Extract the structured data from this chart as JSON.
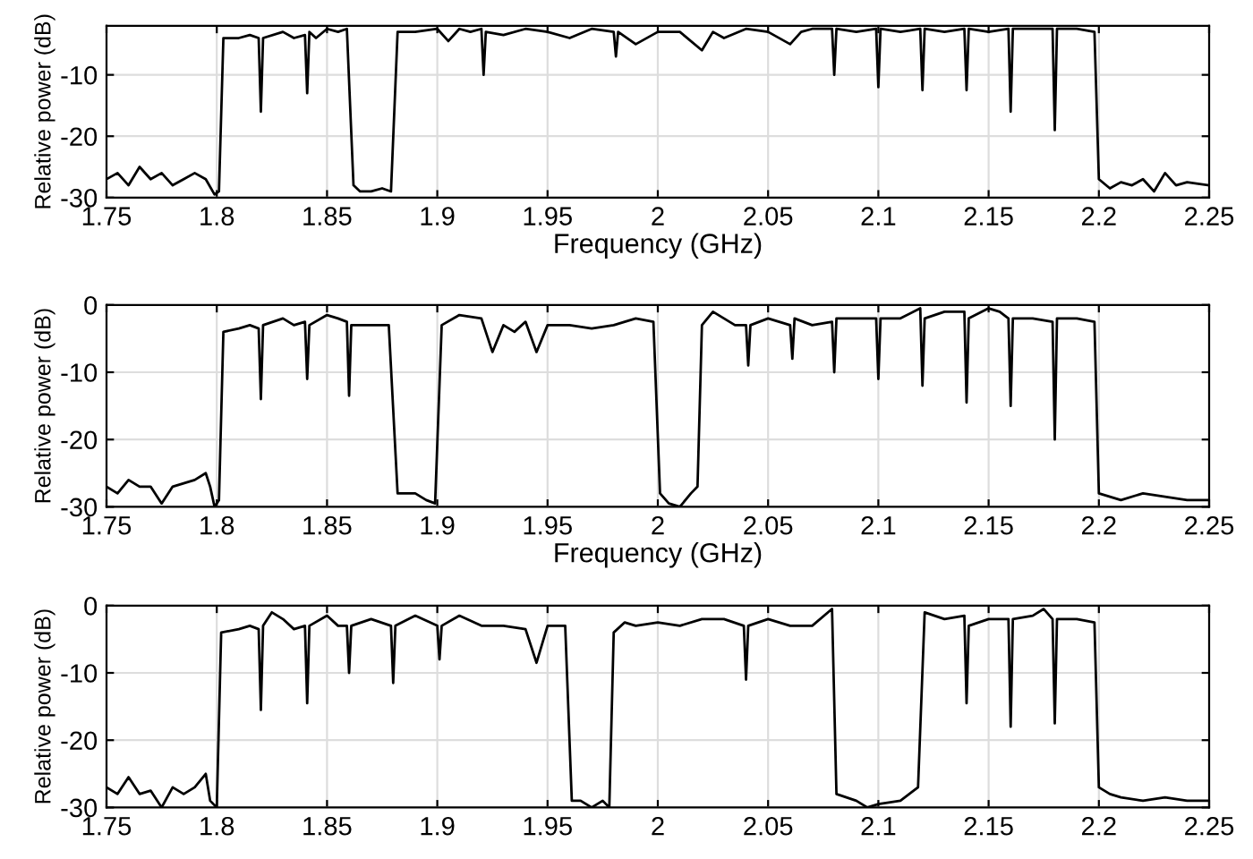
{
  "chart_data": [
    {
      "type": "line",
      "xlabel": "Frequency (GHz)",
      "ylabel": "Relative power (dB)",
      "xlim": [
        1.75,
        2.25
      ],
      "ylim": [
        -30,
        -2
      ],
      "xticks": [
        1.75,
        1.8,
        1.85,
        1.9,
        1.95,
        2,
        2.05,
        2.1,
        2.15,
        2.2,
        2.25
      ],
      "yticks": [
        -30,
        -20,
        -10
      ],
      "grid": true,
      "series": [
        {
          "color": "#000000",
          "x": [
            1.75,
            1.755,
            1.76,
            1.765,
            1.77,
            1.775,
            1.78,
            1.785,
            1.79,
            1.795,
            1.799,
            1.801,
            1.803,
            1.81,
            1.815,
            1.819,
            1.82,
            1.821,
            1.83,
            1.835,
            1.84,
            1.841,
            1.842,
            1.845,
            1.85,
            1.855,
            1.859,
            1.862,
            1.865,
            1.87,
            1.875,
            1.879,
            1.882,
            1.89,
            1.9,
            1.905,
            1.91,
            1.915,
            1.92,
            1.921,
            1.922,
            1.93,
            1.94,
            1.95,
            1.96,
            1.97,
            1.98,
            1.981,
            1.982,
            1.99,
            2.0,
            2.01,
            2.02,
            2.025,
            2.03,
            2.04,
            2.05,
            2.06,
            2.065,
            2.07,
            2.079,
            2.08,
            2.081,
            2.09,
            2.099,
            2.1,
            2.101,
            2.11,
            2.119,
            2.12,
            2.121,
            2.13,
            2.139,
            2.14,
            2.141,
            2.15,
            2.159,
            2.16,
            2.161,
            2.17,
            2.179,
            2.18,
            2.181,
            2.19,
            2.198,
            2.2,
            2.205,
            2.21,
            2.215,
            2.22,
            2.225,
            2.23,
            2.235,
            2.24,
            2.25
          ],
          "values": [
            -27,
            -26,
            -28,
            -25,
            -27,
            -26,
            -28,
            -27,
            -26,
            -27,
            -29.5,
            -29,
            -4,
            -4,
            -3.5,
            -4,
            -16,
            -4,
            -3,
            -4,
            -3.5,
            -13,
            -3,
            -4,
            -2.5,
            -3,
            -2.5,
            -28,
            -29,
            -29,
            -28.5,
            -29,
            -3,
            -3,
            -2.5,
            -4.5,
            -2.5,
            -3,
            -2.5,
            -10,
            -3,
            -3.5,
            -2.5,
            -3,
            -4,
            -2.5,
            -3,
            -7,
            -3,
            -5,
            -3,
            -3,
            -6,
            -3,
            -4,
            -2.5,
            -3,
            -5,
            -3,
            -2.5,
            -2.5,
            -10,
            -2.5,
            -3,
            -2.5,
            -12,
            -2.5,
            -3,
            -2.5,
            -12.5,
            -2.5,
            -3,
            -2.5,
            -12.5,
            -2.5,
            -3,
            -2.5,
            -16,
            -2.5,
            -2.5,
            -2.5,
            -19,
            -2.5,
            -2.5,
            -3,
            -27,
            -28.5,
            -27.5,
            -28,
            -27,
            -29,
            -26,
            -28,
            -27.5,
            -28
          ]
        }
      ]
    },
    {
      "type": "line",
      "xlabel": "Frequency (GHz)",
      "ylabel": "Relative power (dB)",
      "xlim": [
        1.75,
        2.25
      ],
      "ylim": [
        -30,
        0
      ],
      "xticks": [
        1.75,
        1.8,
        1.85,
        1.9,
        1.95,
        2,
        2.05,
        2.1,
        2.15,
        2.2,
        2.25
      ],
      "yticks": [
        -30,
        -20,
        -10,
        0
      ],
      "grid": true,
      "series": [
        {
          "color": "#000000",
          "x": [
            1.75,
            1.755,
            1.76,
            1.765,
            1.77,
            1.775,
            1.78,
            1.785,
            1.79,
            1.795,
            1.797,
            1.799,
            1.801,
            1.803,
            1.81,
            1.815,
            1.819,
            1.82,
            1.821,
            1.83,
            1.835,
            1.84,
            1.841,
            1.842,
            1.85,
            1.855,
            1.859,
            1.86,
            1.861,
            1.87,
            1.878,
            1.882,
            1.89,
            1.895,
            1.899,
            1.902,
            1.91,
            1.92,
            1.925,
            1.93,
            1.935,
            1.94,
            1.945,
            1.95,
            1.96,
            1.97,
            1.98,
            1.99,
            1.998,
            2.001,
            2.005,
            2.01,
            2.015,
            2.018,
            2.02,
            2.025,
            2.03,
            2.035,
            2.04,
            2.041,
            2.042,
            2.05,
            2.06,
            2.061,
            2.062,
            2.07,
            2.079,
            2.08,
            2.081,
            2.09,
            2.099,
            2.1,
            2.101,
            2.11,
            2.119,
            2.12,
            2.121,
            2.13,
            2.139,
            2.14,
            2.141,
            2.15,
            2.155,
            2.159,
            2.16,
            2.161,
            2.17,
            2.179,
            2.18,
            2.181,
            2.19,
            2.198,
            2.2,
            2.205,
            2.21,
            2.22,
            2.23,
            2.24,
            2.25
          ],
          "values": [
            -27,
            -28,
            -26,
            -27,
            -27,
            -29.5,
            -27,
            -26.5,
            -26,
            -25,
            -27,
            -30,
            -29,
            -4,
            -3.5,
            -3,
            -3.5,
            -14,
            -3,
            -2,
            -3,
            -2.5,
            -11,
            -3,
            -1.5,
            -2,
            -2.5,
            -13.5,
            -3,
            -3,
            -3,
            -28,
            -28,
            -29,
            -29.5,
            -3,
            -1.5,
            -2,
            -7,
            -3,
            -4,
            -2.5,
            -7,
            -3,
            -3,
            -3.5,
            -3,
            -2,
            -2.5,
            -28,
            -29.5,
            -30,
            -28,
            -27,
            -3,
            -1,
            -2,
            -3,
            -3,
            -9,
            -3,
            -2,
            -3,
            -8,
            -2,
            -3,
            -2.5,
            -10,
            -2,
            -2,
            -2,
            -11,
            -2,
            -2,
            -0.5,
            -12,
            -2,
            -1,
            -1,
            -14.5,
            -2,
            -0.5,
            -1,
            -2,
            -15,
            -2,
            -2,
            -2.5,
            -20,
            -2,
            -2,
            -2.5,
            -28,
            -28.5,
            -29,
            -28,
            -28.5,
            -29,
            -29
          ]
        }
      ]
    },
    {
      "type": "line",
      "ylabel": "Relative power (dB)",
      "xlim": [
        1.75,
        2.25
      ],
      "ylim": [
        -30,
        0
      ],
      "xticks": [
        1.75,
        1.8,
        1.85,
        1.9,
        1.95,
        2,
        2.05,
        2.1,
        2.15,
        2.2,
        2.25
      ],
      "yticks": [
        -30,
        -20,
        -10,
        0
      ],
      "grid": true,
      "series": [
        {
          "color": "#000000",
          "x": [
            1.75,
            1.755,
            1.76,
            1.765,
            1.77,
            1.775,
            1.78,
            1.785,
            1.79,
            1.795,
            1.797,
            1.8,
            1.802,
            1.81,
            1.815,
            1.819,
            1.82,
            1.821,
            1.825,
            1.83,
            1.835,
            1.84,
            1.841,
            1.842,
            1.85,
            1.855,
            1.859,
            1.86,
            1.861,
            1.87,
            1.879,
            1.88,
            1.881,
            1.89,
            1.9,
            1.901,
            1.902,
            1.91,
            1.92,
            1.93,
            1.94,
            1.945,
            1.95,
            1.958,
            1.961,
            1.965,
            1.97,
            1.975,
            1.978,
            1.98,
            1.985,
            1.99,
            2.0,
            2.01,
            2.02,
            2.03,
            2.039,
            2.04,
            2.041,
            2.05,
            2.06,
            2.07,
            2.079,
            2.081,
            2.09,
            2.095,
            2.1,
            2.11,
            2.118,
            2.121,
            2.13,
            2.139,
            2.14,
            2.141,
            2.15,
            2.159,
            2.16,
            2.161,
            2.17,
            2.175,
            2.179,
            2.18,
            2.181,
            2.19,
            2.198,
            2.2,
            2.205,
            2.21,
            2.22,
            2.23,
            2.24,
            2.25
          ],
          "values": [
            -27,
            -28,
            -25.5,
            -28,
            -27.5,
            -30,
            -27,
            -28,
            -27,
            -25,
            -29,
            -30,
            -4,
            -3.5,
            -3,
            -3.5,
            -15.5,
            -3,
            -1,
            -2,
            -3.5,
            -3,
            -14.5,
            -3,
            -1.5,
            -3,
            -3,
            -10,
            -3,
            -2,
            -3,
            -11.5,
            -3,
            -1.5,
            -3,
            -8,
            -3,
            -1.5,
            -3,
            -3,
            -3.5,
            -8.5,
            -3,
            -3,
            -29,
            -29,
            -30,
            -29,
            -30,
            -4,
            -2.5,
            -3,
            -2.5,
            -3,
            -2,
            -2,
            -3,
            -11,
            -3,
            -2,
            -3,
            -3,
            -0.5,
            -28,
            -29,
            -30,
            -29.5,
            -29,
            -27,
            -1,
            -2,
            -1.5,
            -14.5,
            -3,
            -2,
            -2,
            -18,
            -2,
            -1.5,
            -0.5,
            -2,
            -17.5,
            -2,
            -2,
            -2.5,
            -27,
            -28,
            -28.5,
            -29,
            -28.5,
            -29,
            -29
          ]
        }
      ]
    }
  ]
}
